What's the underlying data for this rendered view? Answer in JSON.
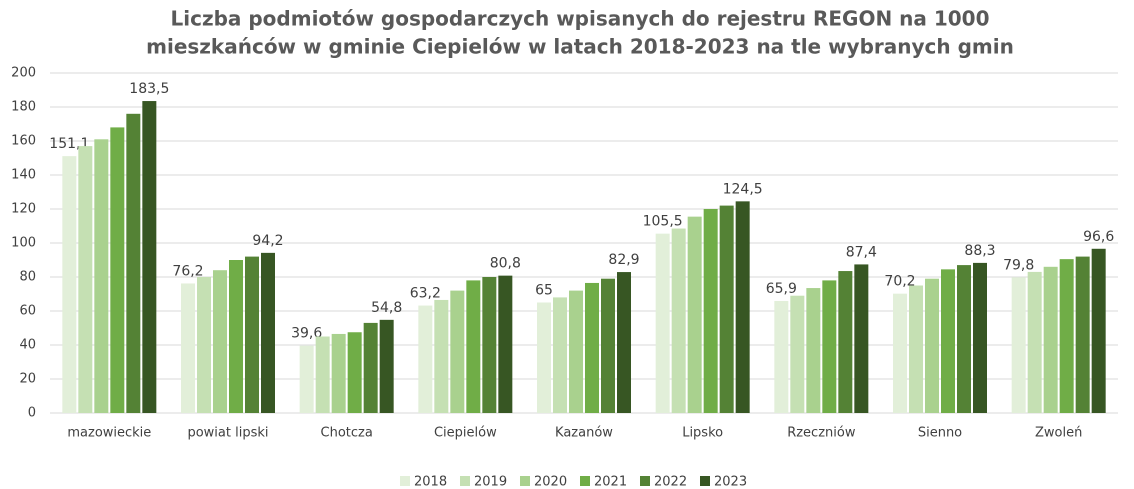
{
  "chart_data": {
    "type": "bar",
    "title": [
      "Liczba podmiotów gospodarczych wpisanych do rejestru REGON na 1000",
      "mieszkańców w gminie Ciepielów w latach 2018-2023 na tle wybranych gmin"
    ],
    "categories": [
      "mazowieckie",
      "powiat lipski",
      "Chotcza",
      "Ciepielów",
      "Kazanów",
      "Lipsko",
      "Rzeczniów",
      "Sienno",
      "Zwoleń"
    ],
    "series": [
      {
        "name": "2018",
        "color": "#e2efd9",
        "values": [
          151.1,
          76.2,
          39.6,
          63.2,
          65,
          105.5,
          65.9,
          70.2,
          79.8
        ],
        "value_labels": [
          "151,1",
          "76,2",
          "39,6",
          "63,2",
          "65",
          "105,5",
          "65,9",
          "70,2",
          "79,8"
        ]
      },
      {
        "name": "2019",
        "color": "#c5e0b3",
        "values": [
          157,
          80,
          45,
          66.5,
          68,
          108.5,
          69,
          75,
          83
        ]
      },
      {
        "name": "2020",
        "color": "#a9d18e",
        "values": [
          161,
          84,
          46.5,
          72,
          72,
          115.5,
          73.5,
          79,
          86
        ]
      },
      {
        "name": "2021",
        "color": "#70ad47",
        "values": [
          168,
          90,
          47.5,
          78,
          76.5,
          120,
          78,
          84.5,
          90.5
        ]
      },
      {
        "name": "2022",
        "color": "#548235",
        "values": [
          176,
          92,
          53,
          80,
          79,
          122,
          83.5,
          87,
          92
        ]
      },
      {
        "name": "2023",
        "color": "#375623",
        "values": [
          183.5,
          94.2,
          54.8,
          80.8,
          82.9,
          124.5,
          87.4,
          88.3,
          96.6
        ],
        "value_labels": [
          "183,5",
          "94,2",
          "54,8",
          "80,8",
          "82,9",
          "124,5",
          "87,4",
          "88,3",
          "96,6"
        ]
      }
    ],
    "ylim": [
      0,
      200
    ],
    "yticks": [
      0,
      20,
      40,
      60,
      80,
      100,
      120,
      140,
      160,
      180,
      200
    ],
    "grid": true,
    "legend": "bottom"
  }
}
